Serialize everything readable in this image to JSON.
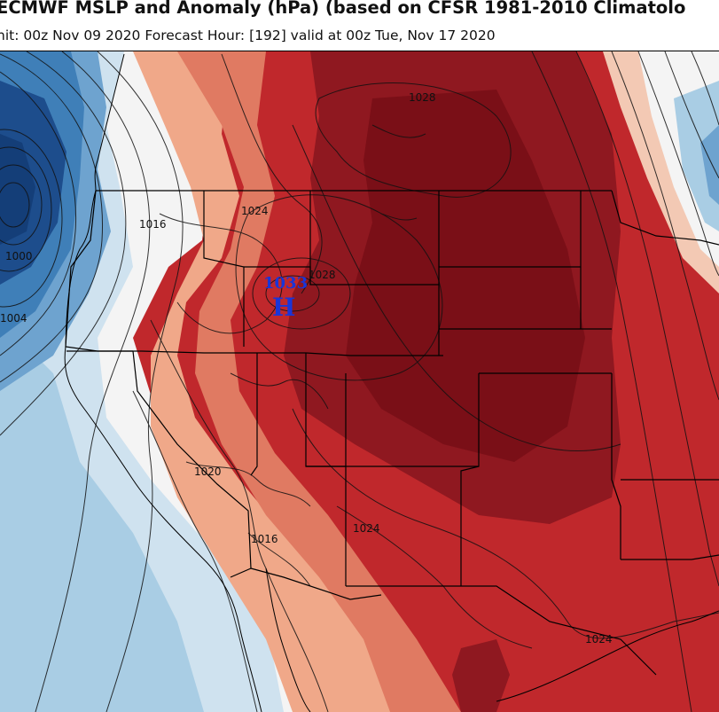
{
  "header": {
    "title": "ECMWF MSLP and Anomaly (hPa) (based on CFSR 1981-2010 Climatolo",
    "subtitle": "nit: 00z Nov 09 2020   Forecast Hour: [192]   valid at 00z Tue, Nov 17 2020"
  },
  "isobar_labels": [
    "1028",
    "1016",
    "1024",
    "1000",
    "1028",
    "1004",
    "1020",
    "1016",
    "1024",
    "1024"
  ],
  "high_center": {
    "letter": "H",
    "pressure": "1033"
  },
  "colors": {
    "strong_positive": "#7a0f17",
    "positive": "#c0282c",
    "weak_positive": "#f0a889",
    "neutral": "#f6f6f6",
    "weak_negative": "#a9cde4",
    "negative": "#3f7fb8",
    "strong_negative": "#143e78",
    "high_marker": "#1a35d8"
  }
}
